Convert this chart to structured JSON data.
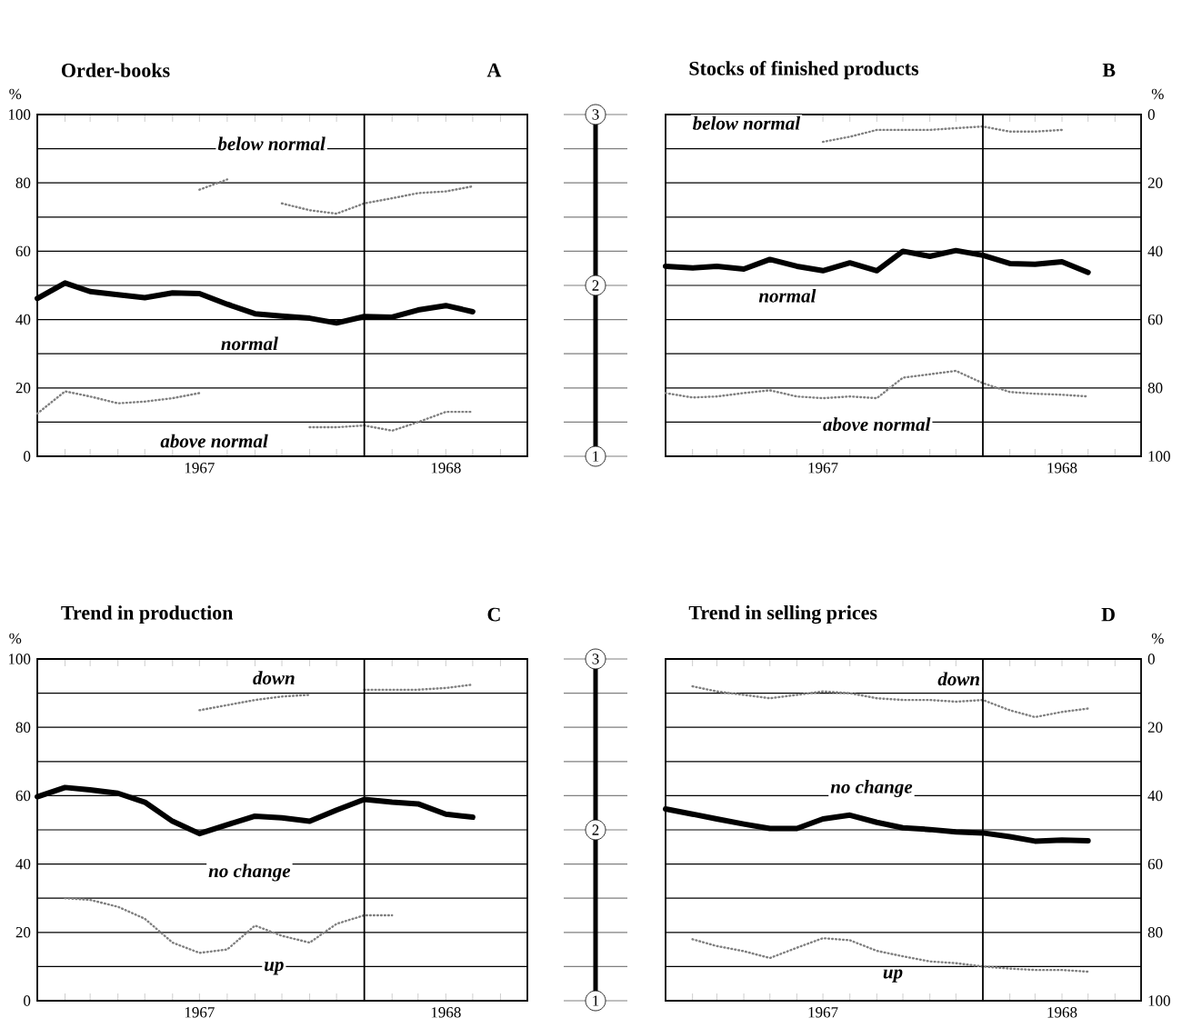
{
  "chart_data": [
    {
      "type": "line",
      "title": "Order-books",
      "ylabel": "%",
      "annotations": [
        "A",
        "*below normal*",
        "*normal*",
        "*above normal*"
      ],
      "x": [
        "1967-01",
        "1967-02",
        "1967-03",
        "1967-04",
        "1967-05",
        "1967-06",
        "1967-07",
        "1967-08",
        "1967-09",
        "1967-10",
        "1967-11",
        "1967-12",
        "1968-01",
        "1968-02",
        "1968-03",
        "1968-04",
        "1968-05"
      ],
      "series": [
        {
          "color": "#000000",
          "line_style": "solid",
          "values": [
            46.2,
            50.7,
            48.2,
            47.3,
            46.4,
            47.8,
            47.6,
            44.5,
            41.7,
            41.0,
            40.4,
            39.0,
            40.9,
            40.7,
            42.8,
            44.1,
            42.3
          ]
        },
        {
          "color": "#7f7f7f",
          "line_style": "dotted",
          "values": [
            null,
            null,
            null,
            null,
            null,
            null,
            78,
            81,
            null,
            74,
            72,
            71,
            74,
            75.5,
            77,
            77.5,
            79
          ]
        },
        {
          "color": "#7f7f7f",
          "line_style": "dotted",
          "values": [
            12.5,
            19,
            17.5,
            15.5,
            16,
            17,
            18.5,
            null,
            null,
            null,
            8.5,
            8.5,
            9,
            7.5,
            10,
            13,
            13
          ]
        }
      ],
      "xlim": [
        "1967-01",
        "1968-07"
      ],
      "xticks": [
        {
          "value": "1967-02",
          "label": null
        },
        {
          "value": "1967-03",
          "label": null
        },
        {
          "value": "1967-04",
          "label": null
        },
        {
          "value": "1967-05",
          "label": null
        },
        {
          "value": "1967-06",
          "label": null
        },
        {
          "value": "1967-07",
          "label": "1967"
        },
        {
          "value": "1967-08",
          "label": null
        },
        {
          "value": "1967-09",
          "label": null
        },
        {
          "value": "1967-10",
          "label": null
        },
        {
          "value": "1967-11",
          "label": null
        },
        {
          "value": "1967-12",
          "label": null
        },
        {
          "value": "1968-02",
          "label": null
        },
        {
          "value": "1968-03",
          "label": null
        },
        {
          "value": "1968-04",
          "label": "1968"
        },
        {
          "value": "1968-05",
          "label": null
        },
        {
          "value": "1968-06",
          "label": null
        }
      ],
      "ylim": [
        0,
        100
      ],
      "yticks": [
        0,
        {
          "value": 10,
          "label": null
        },
        20,
        {
          "value": 30,
          "label": null
        },
        40,
        {
          "value": 50,
          "label": null
        },
        60,
        {
          "value": 70,
          "label": null
        },
        80,
        {
          "value": 90,
          "label": null
        },
        100
      ],
      "y2lim": [
        1,
        3
      ],
      "y2ticks": [
        1,
        {
          "value": 1.2,
          "label": null
        },
        {
          "value": 1.4,
          "label": null
        },
        {
          "value": 1.6,
          "label": null
        },
        {
          "value": 1.8,
          "label": null
        },
        2,
        {
          "value": 2.2,
          "label": null
        },
        {
          "value": 2.4,
          "label": null
        },
        {
          "value": 2.6,
          "label": null
        },
        {
          "value": 2.8,
          "label": null
        },
        3
      ],
      "grid": "y",
      "ref_lines": [
        {
          "axis": "x",
          "value": "1968-01",
          "color": "#000000"
        }
      ]
    },
    {
      "type": "line",
      "title": "Stocks of finished products",
      "y2label": "%",
      "annotations": [
        "B",
        "*below normal*",
        "*normal*",
        "*above normal*"
      ],
      "x": [
        "1967-01",
        "1967-02",
        "1967-03",
        "1967-04",
        "1967-05",
        "1967-06",
        "1967-07",
        "1967-08",
        "1967-09",
        "1967-10",
        "1967-11",
        "1967-12",
        "1968-01",
        "1968-02",
        "1968-03",
        "1968-04",
        "1968-05"
      ],
      "series": [
        {
          "color": "#000000",
          "line_style": "solid",
          "axis": "y2",
          "values": [
            44.4,
            44.9,
            44.4,
            45.2,
            42.4,
            44.4,
            45.7,
            43.4,
            45.7,
            40.0,
            41.5,
            39.8,
            41.2,
            43.6,
            43.8,
            43.1,
            46.2
          ]
        },
        {
          "color": "#7f7f7f",
          "line_style": "dotted",
          "axis": "y2",
          "values": [
            null,
            null,
            null,
            null,
            null,
            null,
            8,
            6.5,
            4.5,
            4.5,
            4.5,
            4,
            3.5,
            5,
            5,
            4.5,
            null
          ]
        },
        {
          "color": "#7f7f7f",
          "line_style": "dotted",
          "axis": "y2",
          "values": [
            81.5,
            82.8,
            82.5,
            81.5,
            80.7,
            82.5,
            83,
            82.5,
            83,
            77,
            76,
            75,
            78.6,
            81.2,
            81.7,
            82,
            82.5
          ]
        }
      ],
      "xlim": [
        "1967-01",
        "1968-07"
      ],
      "xticks": [
        {
          "value": "1967-02",
          "label": null
        },
        {
          "value": "1967-03",
          "label": null
        },
        {
          "value": "1967-04",
          "label": null
        },
        {
          "value": "1967-05",
          "label": null
        },
        {
          "value": "1967-06",
          "label": null
        },
        {
          "value": "1967-07",
          "label": "1967"
        },
        {
          "value": "1967-08",
          "label": null
        },
        {
          "value": "1967-09",
          "label": null
        },
        {
          "value": "1967-10",
          "label": null
        },
        {
          "value": "1967-11",
          "label": null
        },
        {
          "value": "1967-12",
          "label": null
        },
        {
          "value": "1968-02",
          "label": null
        },
        {
          "value": "1968-03",
          "label": null
        },
        {
          "value": "1968-04",
          "label": "1968"
        },
        {
          "value": "1968-05",
          "label": null
        },
        {
          "value": "1968-06",
          "label": null
        }
      ],
      "y2lim": [
        100,
        0
      ],
      "y2ticks": [
        0,
        {
          "value": 10,
          "label": null
        },
        20,
        {
          "value": 30,
          "label": null
        },
        40,
        {
          "value": 50,
          "label": null
        },
        60,
        {
          "value": 70,
          "label": null
        },
        80,
        {
          "value": 90,
          "label": null
        },
        100
      ],
      "grid": "y",
      "ref_lines": [
        {
          "axis": "x",
          "value": "1968-01",
          "color": "#000000"
        }
      ]
    },
    {
      "type": "line",
      "title": "Trend in production",
      "ylabel": "%",
      "annotations": [
        "C",
        "*down*",
        "*no change*",
        "*up*"
      ],
      "x": [
        "1967-01",
        "1967-02",
        "1967-03",
        "1967-04",
        "1967-05",
        "1967-06",
        "1967-07",
        "1967-08",
        "1967-09",
        "1967-10",
        "1967-11",
        "1967-12",
        "1968-01",
        "1968-02",
        "1968-03",
        "1968-04",
        "1968-05"
      ],
      "series": [
        {
          "color": "#000000",
          "line_style": "solid",
          "values": [
            59.7,
            62.4,
            61.7,
            60.7,
            58.1,
            52.5,
            48.9,
            51.5,
            54.0,
            53.5,
            52.5,
            55.8,
            58.9,
            58.1,
            57.6,
            54.6,
            53.7
          ]
        },
        {
          "color": "#7f7f7f",
          "line_style": "dotted",
          "values": [
            null,
            null,
            null,
            null,
            null,
            null,
            85,
            86.5,
            88,
            89,
            89.5,
            null,
            91,
            91,
            91,
            91.5,
            92.5
          ]
        },
        {
          "color": "#7f7f7f",
          "line_style": "dotted",
          "values": [
            null,
            30,
            29.5,
            27.5,
            24,
            17,
            14,
            15,
            22,
            19,
            17,
            22.5,
            25,
            25,
            null,
            null,
            null
          ]
        }
      ],
      "xlim": [
        "1967-01",
        "1968-07"
      ],
      "xticks": [
        {
          "value": "1967-02",
          "label": null
        },
        {
          "value": "1967-03",
          "label": null
        },
        {
          "value": "1967-04",
          "label": null
        },
        {
          "value": "1967-05",
          "label": null
        },
        {
          "value": "1967-06",
          "label": null
        },
        {
          "value": "1967-07",
          "label": "1967"
        },
        {
          "value": "1967-08",
          "label": null
        },
        {
          "value": "1967-09",
          "label": null
        },
        {
          "value": "1967-10",
          "label": null
        },
        {
          "value": "1967-11",
          "label": null
        },
        {
          "value": "1967-12",
          "label": null
        },
        {
          "value": "1968-02",
          "label": null
        },
        {
          "value": "1968-03",
          "label": null
        },
        {
          "value": "1968-04",
          "label": "1968"
        },
        {
          "value": "1968-05",
          "label": null
        },
        {
          "value": "1968-06",
          "label": null
        }
      ],
      "ylim": [
        0,
        100
      ],
      "yticks": [
        0,
        {
          "value": 10,
          "label": null
        },
        20,
        {
          "value": 30,
          "label": null
        },
        40,
        {
          "value": 50,
          "label": null
        },
        60,
        {
          "value": 70,
          "label": null
        },
        80,
        {
          "value": 90,
          "label": null
        },
        100
      ],
      "y2lim": [
        1,
        3
      ],
      "y2ticks": [
        1,
        {
          "value": 1.2,
          "label": null
        },
        {
          "value": 1.4,
          "label": null
        },
        {
          "value": 1.6,
          "label": null
        },
        {
          "value": 1.8,
          "label": null
        },
        2,
        {
          "value": 2.2,
          "label": null
        },
        {
          "value": 2.4,
          "label": null
        },
        {
          "value": 2.6,
          "label": null
        },
        {
          "value": 2.8,
          "label": null
        },
        3
      ],
      "grid": "y",
      "ref_lines": [
        {
          "axis": "x",
          "value": "1968-01",
          "color": "#000000"
        }
      ]
    },
    {
      "type": "line",
      "title": "Trend in selling prices",
      "y2label": "%",
      "annotations": [
        "D",
        "*down*",
        "*no change*",
        "*up*"
      ],
      "x": [
        "1967-01",
        "1967-02",
        "1967-03",
        "1967-04",
        "1967-05",
        "1967-06",
        "1967-07",
        "1967-08",
        "1967-09",
        "1967-10",
        "1967-11",
        "1967-12",
        "1968-01",
        "1968-02",
        "1968-03",
        "1968-04",
        "1968-05"
      ],
      "series": [
        {
          "color": "#000000",
          "line_style": "solid",
          "axis": "y2",
          "values": [
            43.9,
            45.4,
            46.8,
            48.3,
            49.6,
            49.6,
            46.8,
            45.7,
            47.8,
            49.4,
            49.9,
            50.6,
            50.9,
            52.0,
            53.3,
            53.0,
            53.2
          ]
        },
        {
          "color": "#7f7f7f",
          "line_style": "dotted",
          "axis": "y2",
          "values": [
            null,
            8,
            9.5,
            10.5,
            11.5,
            10.5,
            9.5,
            10,
            11.5,
            12,
            12,
            12.5,
            12,
            15,
            17,
            15.5,
            14.5
          ]
        },
        {
          "color": "#7f7f7f",
          "line_style": "dotted",
          "axis": "y2",
          "values": [
            null,
            82,
            84,
            85.5,
            87.5,
            84.5,
            81.7,
            82.3,
            85.4,
            87,
            88.5,
            89,
            90,
            90.6,
            91,
            91,
            91.5
          ]
        }
      ],
      "xlim": [
        "1967-01",
        "1968-07"
      ],
      "xticks": [
        {
          "value": "1967-02",
          "label": null
        },
        {
          "value": "1967-03",
          "label": null
        },
        {
          "value": "1967-04",
          "label": null
        },
        {
          "value": "1967-05",
          "label": null
        },
        {
          "value": "1967-06",
          "label": null
        },
        {
          "value": "1967-07",
          "label": "1967"
        },
        {
          "value": "1967-08",
          "label": null
        },
        {
          "value": "1967-09",
          "label": null
        },
        {
          "value": "1967-10",
          "label": null
        },
        {
          "value": "1967-11",
          "label": null
        },
        {
          "value": "1967-12",
          "label": null
        },
        {
          "value": "1968-02",
          "label": null
        },
        {
          "value": "1968-03",
          "label": null
        },
        {
          "value": "1968-04",
          "label": "1968"
        },
        {
          "value": "1968-05",
          "label": null
        },
        {
          "value": "1968-06",
          "label": null
        }
      ],
      "y2lim": [
        100,
        0
      ],
      "y2ticks": [
        0,
        {
          "value": 10,
          "label": null
        },
        20,
        {
          "value": 30,
          "label": null
        },
        40,
        {
          "value": 50,
          "label": null
        },
        60,
        {
          "value": 70,
          "label": null
        },
        80,
        {
          "value": 90,
          "label": null
        },
        100
      ],
      "grid": "y",
      "ref_lines": [
        {
          "axis": "x",
          "value": "1968-01",
          "color": "#000000"
        }
      ]
    }
  ]
}
